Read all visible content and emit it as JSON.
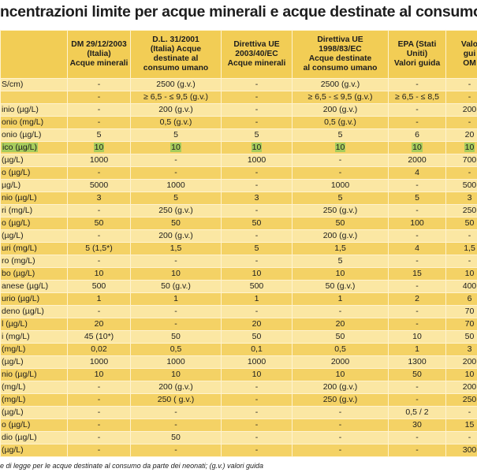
{
  "header": {
    "title": "ncentrazioni limite per acque minerali e acque destinate al consumo uma"
  },
  "table": {
    "columns": [
      [
        "DM 29/12/2003",
        "(Italia)",
        "Acque minerali"
      ],
      [
        "D.L. 31/2001",
        "(Italia) Acque",
        "destinate al",
        "consumo umano"
      ],
      [
        "Direttiva UE",
        "2003/40/EC",
        "Acque minerali"
      ],
      [
        "Direttiva UE",
        "1998/83/EC",
        "Acque destinate",
        "al consumo umano"
      ],
      [
        "EPA (Stati",
        "Uniti)",
        "Valori guida"
      ],
      [
        "Valo",
        "gui",
        "OM"
      ]
    ],
    "rows": [
      [
        "S/cm)",
        "-",
        "2500 (g.v.)",
        "-",
        "2500 (g.v.)",
        "-",
        "-"
      ],
      [
        null,
        "-",
        "≥ 6,5 - ≤ 9,5 (g.v.)",
        "-",
        "≥ 6,5 - ≤ 9,5 (g.v.)",
        "≥ 6,5 - ≤ 8,5",
        "-"
      ],
      [
        "inio (µg/L)",
        "-",
        "200 (g.v.)",
        "-",
        "200 (g.v.)",
        "-",
        "200"
      ],
      [
        "onio (mg/L)",
        "-",
        "0,5 (g.v.)",
        "-",
        "0,5 (g.v.)",
        "-",
        "-"
      ],
      [
        "onio (µg/L)",
        "5",
        "5",
        "5",
        "5",
        "6",
        "20"
      ],
      [
        "ico (µg/L)",
        "10",
        "10",
        "10",
        "10",
        "10",
        "10"
      ],
      [
        "(µg/L)",
        "1000",
        "-",
        "1000",
        "-",
        "2000",
        "700"
      ],
      [
        "o (µg/L)",
        "-",
        "-",
        "-",
        "-",
        "4",
        "-"
      ],
      [
        "µg/L)",
        "5000",
        "1000",
        "-",
        "1000",
        "-",
        "500"
      ],
      [
        "nio (µg/L)",
        "3",
        "5",
        "3",
        "5",
        "5",
        "3"
      ],
      [
        "ri (mg/L)",
        "-",
        "250 (g.v.)",
        "-",
        "250 (g.v.)",
        "-",
        "250"
      ],
      [
        "o (µg/L)",
        "50",
        "50",
        "50",
        "50",
        "100",
        "50"
      ],
      [
        "(µg/L)",
        "-",
        "200 (g.v.)",
        "-",
        "200 (g.v.)",
        "-",
        "-"
      ],
      [
        "uri (mg/L)",
        "5 (1,5*)",
        "1,5",
        "5",
        "1,5",
        "4",
        "1,5"
      ],
      [
        "ro (mg/L)",
        "-",
        "-",
        "-",
        "5",
        "-",
        "-"
      ],
      [
        "bo (µg/L)",
        "10",
        "10",
        "10",
        "10",
        "15",
        "10"
      ],
      [
        "anese (µg/L)",
        "500",
        "50 (g.v.)",
        "500",
        "50 (g.v.)",
        "-",
        "400"
      ],
      [
        "urio (µg/L)",
        "1",
        "1",
        "1",
        "1",
        "2",
        "6"
      ],
      [
        "deno (µg/L)",
        "-",
        "-",
        "-",
        "-",
        "-",
        "70"
      ],
      [
        "l (µg/L)",
        "20",
        "-",
        "20",
        "20",
        "-",
        "70"
      ],
      [
        "i (mg/L)",
        "45 (10*)",
        "50",
        "50",
        "50",
        "10",
        "50"
      ],
      [
        "(mg/L)",
        "0,02",
        "0,5",
        "0,1",
        "0,5",
        "1",
        "3"
      ],
      [
        "(µg/L)",
        "1000",
        "1000",
        "1000",
        "2000",
        "1300",
        "200"
      ],
      [
        "nio (µg/L)",
        "10",
        "10",
        "10",
        "10",
        "50",
        "10"
      ],
      [
        "(mg/L)",
        "-",
        "200 (g.v.)",
        "-",
        "200 (g.v.)",
        "-",
        "200"
      ],
      [
        "(mg/L)",
        "-",
        "250 ( g.v.)",
        "-",
        "250 (g.v.)",
        "-",
        "250"
      ],
      [
        "(µg/L)",
        "-",
        "-",
        "-",
        "-",
        "0,5 / 2",
        "-"
      ],
      [
        "o (µg/L)",
        "-",
        "-",
        "-",
        "-",
        "30",
        "15"
      ],
      [
        "dio (µg/L)",
        "-",
        "50",
        "-",
        "-",
        "-",
        "-"
      ],
      [
        "(µg/L)",
        "-",
        "-",
        "-",
        "-",
        "-",
        "300"
      ]
    ]
  },
  "footnote": "e di legge per le acque destinate al consumo da parte dei neonati; (g.v.) valori guida"
}
